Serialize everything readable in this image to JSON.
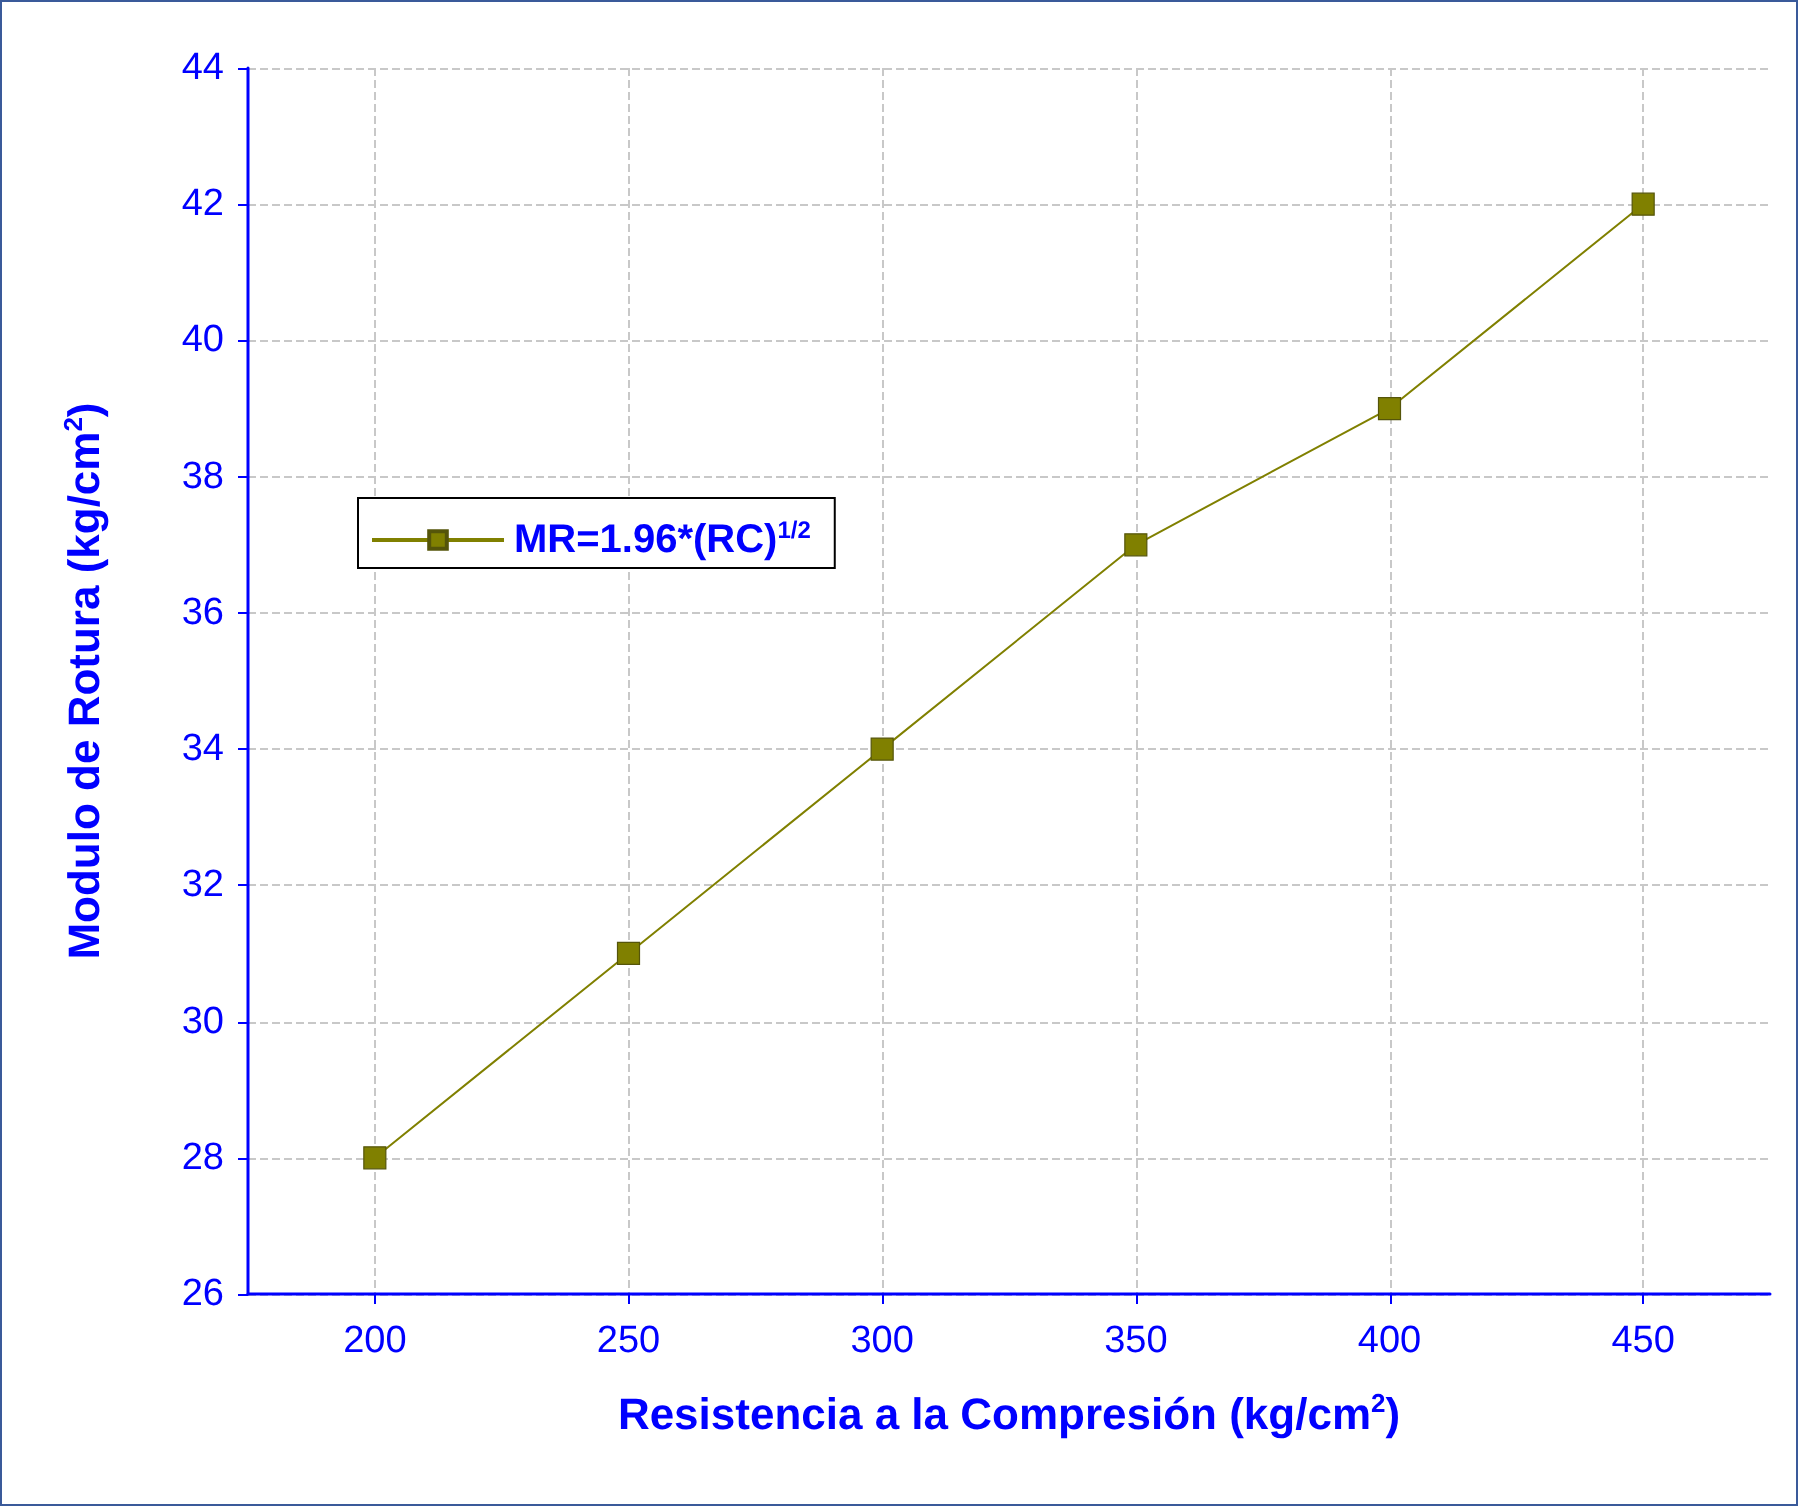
{
  "chart_data": {
    "type": "line",
    "xlabel": "Resistencia a la Compresión (kg/cm$^{2}$)",
    "ylabel": "Modulo de Rotura (kg/cm$^{2}$)",
    "x": [
      200,
      250,
      300,
      350,
      400,
      450
    ],
    "series": [
      {
        "name": "MR=1.96*(RC)$^{1/2}$",
        "color": "#808000",
        "values": [
          28,
          31,
          34,
          37,
          39,
          42
        ]
      }
    ],
    "xlim": [
      175,
      475
    ],
    "xticks": [
      200,
      250,
      300,
      350,
      400,
      450
    ],
    "ylim": [
      26,
      44
    ],
    "yticks": [
      26,
      28,
      30,
      32,
      34,
      36,
      38,
      40,
      42,
      44
    ],
    "grid": true,
    "legend": "top left",
    "marker": "square",
    "line_style": "solid"
  }
}
